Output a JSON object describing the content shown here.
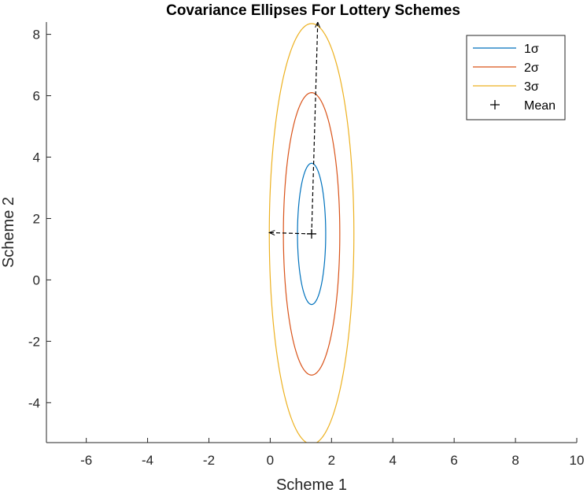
{
  "chart_data": {
    "type": "line",
    "title": "Covariance Ellipses For Lottery Schemes",
    "xlabel": "Scheme 1",
    "ylabel": "Scheme 2",
    "xlim": [
      -7.3,
      10
    ],
    "ylim": [
      -5.3,
      8.4
    ],
    "xticks": [
      -6,
      -4,
      -2,
      0,
      2,
      4,
      6,
      8,
      10
    ],
    "yticks": [
      -4,
      -2,
      0,
      2,
      4,
      6,
      8
    ],
    "grid": false,
    "legend_position": "top-right",
    "mean": {
      "x": 1.35,
      "y": 1.5
    },
    "principal_axes": [
      {
        "from": [
          1.35,
          1.5
        ],
        "to": [
          -0.03,
          1.54
        ]
      },
      {
        "from": [
          1.35,
          1.5
        ],
        "to": [
          1.55,
          8.4
        ]
      }
    ],
    "series": [
      {
        "name": "1σ",
        "color": "#0072BD",
        "center": [
          1.35,
          1.5
        ],
        "semi_axis_x": 0.46,
        "semi_axis_y": 2.3,
        "tilt": 0.03
      },
      {
        "name": "2σ",
        "color": "#D95319",
        "center": [
          1.35,
          1.5
        ],
        "semi_axis_x": 0.92,
        "semi_axis_y": 4.6,
        "tilt": 0.03
      },
      {
        "name": "3σ",
        "color": "#EDB120",
        "center": [
          1.35,
          1.5
        ],
        "semi_axis_x": 1.38,
        "semi_axis_y": 6.85,
        "tilt": 0.03
      }
    ],
    "legend": {
      "entries": [
        {
          "label": "1σ",
          "color": "#0072BD",
          "marker": "line"
        },
        {
          "label": "2σ",
          "color": "#D95319",
          "marker": "line"
        },
        {
          "label": "3σ",
          "color": "#EDB120",
          "marker": "line"
        },
        {
          "label": "Mean",
          "color": "#000000",
          "marker": "plus"
        }
      ],
      "legend_line_color": "#2a8a6a"
    }
  }
}
